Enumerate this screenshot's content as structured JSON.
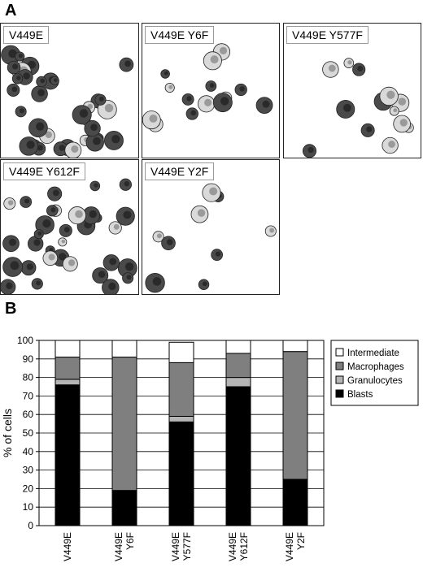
{
  "figure": {
    "panel_a": {
      "letter": "A"
    },
    "panel_b": {
      "letter": "B"
    }
  },
  "micrographs": [
    {
      "label": "V449E",
      "density": "high"
    },
    {
      "label": "V449E Y6F",
      "density": "medium"
    },
    {
      "label": "V449E Y577F",
      "density": "medium"
    },
    {
      "label": "V449E Y612F",
      "density": "high"
    },
    {
      "label": "V449E Y2F",
      "density": "low"
    }
  ],
  "colors": {
    "blasts": "#000000",
    "granulocytes": "#b5b5b5",
    "macrophages": "#7f7f7f",
    "intermediate": "#ffffff",
    "cell_dark": "#4a4a4a",
    "cell_light": "#d9d9d9"
  },
  "chart_data": {
    "type": "bar",
    "stacked": true,
    "ylabel": "% of cells",
    "xlabel": "",
    "ylim": [
      0,
      100
    ],
    "yticks": [
      "0",
      "10",
      "20",
      "30",
      "40",
      "50",
      "60",
      "70",
      "80",
      "90",
      "100"
    ],
    "grid": true,
    "legend_position": "top-right",
    "categories": [
      [
        "V449E"
      ],
      [
        "V449E",
        "Y6F"
      ],
      [
        "V449E",
        "Y577F"
      ],
      [
        "V449E",
        "Y612F"
      ],
      [
        "V449E",
        "Y2F"
      ]
    ],
    "series": [
      {
        "name": "Blasts",
        "color": "#000000",
        "values": [
          76,
          19,
          56,
          75,
          25
        ]
      },
      {
        "name": "Granulocytes",
        "color": "#b5b5b5",
        "values": [
          3,
          0,
          3,
          5,
          0
        ]
      },
      {
        "name": "Macrophages",
        "color": "#7f7f7f",
        "values": [
          12,
          72,
          29,
          13,
          69
        ]
      },
      {
        "name": "Intermediate",
        "color": "#ffffff",
        "values": [
          9,
          9,
          11,
          7,
          6
        ]
      }
    ],
    "legend_order": [
      "Intermediate",
      "Macrophages",
      "Granulocytes",
      "Blasts"
    ]
  }
}
